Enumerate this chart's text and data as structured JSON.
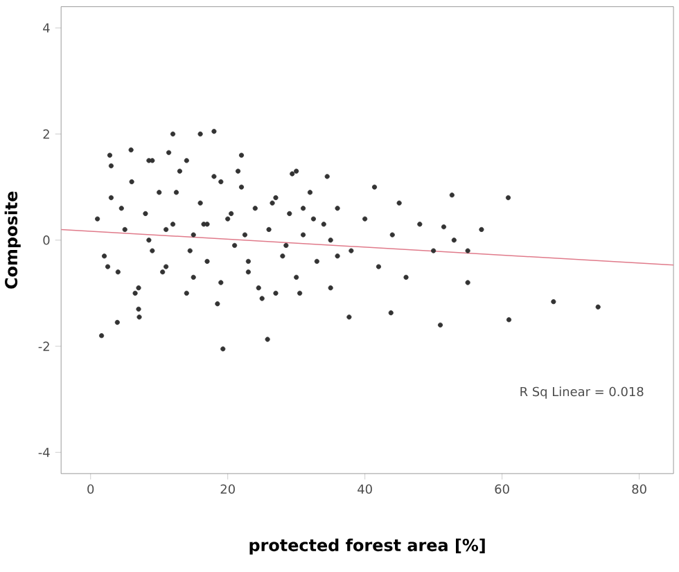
{
  "chart_data": {
    "type": "scatter",
    "xlabel": "protected forest area [%]",
    "ylabel": "Composite",
    "xlim": [
      -4.3,
      85
    ],
    "ylim": [
      -4.4,
      4.4
    ],
    "xticks": [
      0,
      20,
      40,
      60,
      80
    ],
    "yticks": [
      -4,
      -2,
      0,
      2,
      4
    ],
    "grid": false,
    "annotations": [
      "R Sq Linear = 0.018"
    ],
    "series": [
      {
        "marker": "circle",
        "color": "#333333",
        "x": [
          1.6,
          19.3,
          25.8,
          51,
          43.8,
          74,
          67.5,
          61,
          37.7,
          7.1,
          3.9,
          12,
          16,
          18,
          2.8,
          5.9,
          11.4,
          8.5,
          21.5,
          29.4,
          34.5,
          41.4,
          52.7,
          60.9,
          51.5,
          1,
          2,
          3,
          4,
          5,
          6,
          7,
          8,
          9,
          10,
          11,
          12,
          13,
          14,
          15,
          16,
          17,
          18,
          19,
          20,
          21,
          22,
          23,
          24,
          25,
          26,
          27,
          28,
          29,
          30,
          31,
          32,
          33,
          34,
          35,
          36,
          38,
          40,
          42,
          44,
          46,
          48,
          50,
          53,
          55,
          57,
          2.5,
          4.5,
          6.5,
          8.5,
          10.5,
          12.5,
          14.5,
          16.5,
          18.5,
          20.5,
          22.5,
          24.5,
          26.5,
          28.5,
          30.5,
          32.5,
          35,
          3,
          7,
          11,
          15,
          19,
          23,
          27,
          31,
          36,
          45,
          55,
          14,
          22,
          30,
          9,
          17
        ],
        "values": [
          -1.8,
          -2.05,
          -1.87,
          -1.6,
          -1.37,
          -1.26,
          -1.16,
          -1.5,
          -1.45,
          -1.45,
          -1.55,
          2.0,
          2.0,
          2.05,
          1.6,
          1.7,
          1.65,
          1.5,
          1.3,
          1.25,
          1.2,
          1.0,
          0.85,
          0.8,
          0.25,
          0.4,
          -0.3,
          0.8,
          -0.6,
          0.2,
          1.1,
          -0.9,
          0.5,
          -0.2,
          0.9,
          -0.5,
          0.3,
          1.3,
          -1.0,
          0.1,
          0.7,
          -0.4,
          1.2,
          -0.8,
          0.4,
          -0.1,
          1.0,
          -0.6,
          0.6,
          -1.1,
          0.2,
          0.8,
          -0.3,
          0.5,
          -0.7,
          0.1,
          0.9,
          -0.4,
          0.3,
          -0.9,
          0.6,
          -0.2,
          0.4,
          -0.5,
          0.1,
          -0.7,
          0.3,
          -0.2,
          0.0,
          -0.8,
          0.2,
          -0.5,
          0.6,
          -1.0,
          0.0,
          -0.6,
          0.9,
          -0.2,
          0.3,
          -1.2,
          0.5,
          0.1,
          -0.9,
          0.7,
          -0.1,
          -1.0,
          0.4,
          0.0,
          1.4,
          -1.3,
          0.2,
          -0.7,
          1.1,
          -0.4,
          -1.0,
          0.6,
          -0.3,
          0.7,
          -0.2,
          1.5,
          1.6,
          1.3,
          1.5,
          0.3
        ]
      },
      {
        "type": "line",
        "marker": "none",
        "color": "#e07a8a",
        "x": [
          -4.3,
          85
        ],
        "values": [
          0.2,
          -0.47
        ]
      }
    ]
  }
}
